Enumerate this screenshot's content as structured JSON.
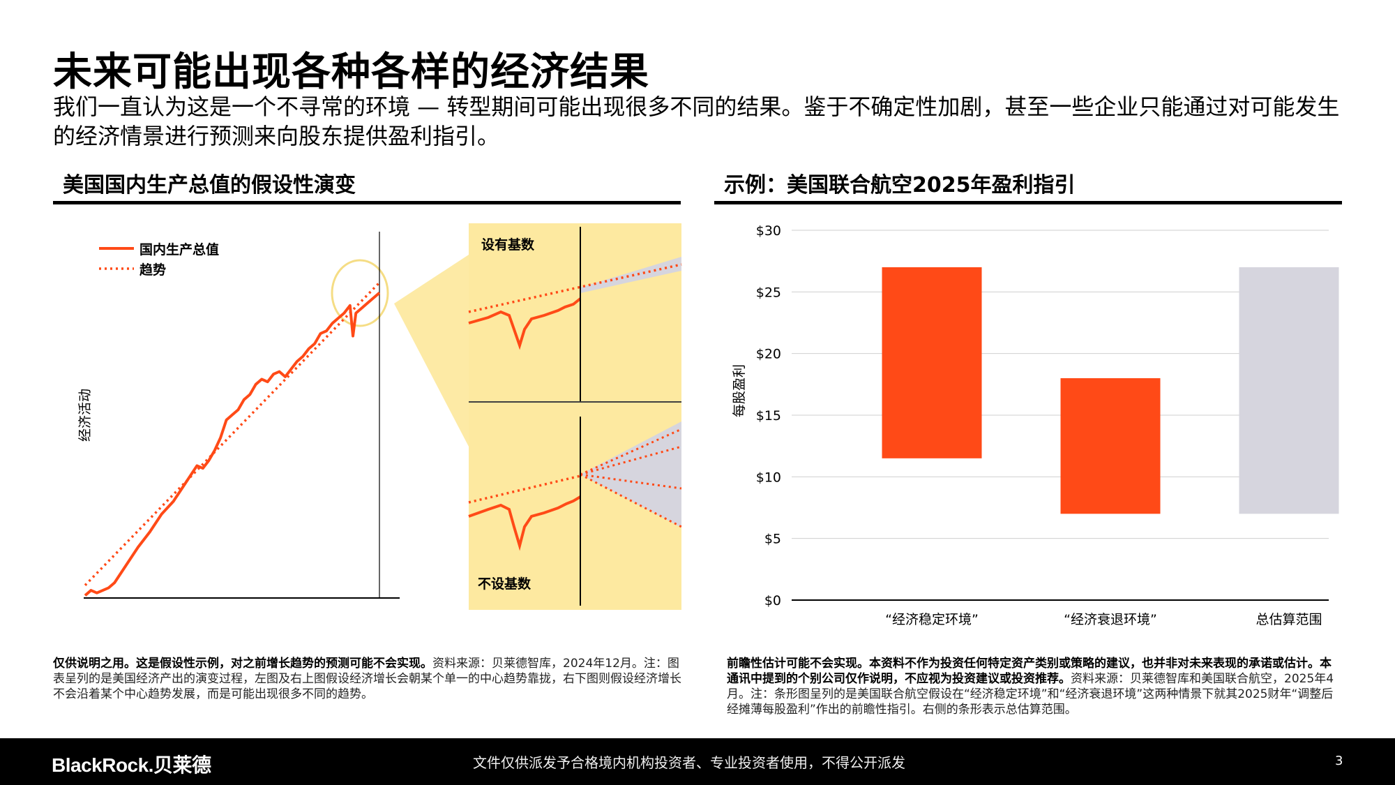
{
  "title": "未来可能出现各种各样的经济结果",
  "subtitle": "我们一直认为这是一个不寻常的环境 — 转型期间可能出现很多不同的结果。鉴于不确定性加剧，甚至一些企业只能通过对可能发生的经济情景进行预测来向股东提供盈利指引。",
  "left_panel": {
    "title": "美国国内生产总值的假设性演变",
    "ylabel": "经济活动",
    "legend": {
      "gdp": "国内生产总值",
      "trend": "趋势"
    },
    "inset_top_label": "设有基数",
    "inset_bottom_label": "不设基数",
    "footnote_bold": "仅供说明之用。这是假设性示例，对之前增长趋势的预测可能不会实现。",
    "footnote": "资料来源：贝莱德智库，2024年12月。注：图表呈列的是美国经济产出的演变过程，左图及右上图假设经济增长会朝某个单一的中心趋势靠拢，右下图则假设经济增长不会沿着某个中心趋势发展，而是可能出现很多不同的趋势。"
  },
  "right_panel": {
    "title": "示例：美国联合航空2025年盈利指引",
    "footnote_bold": "前瞻性估计可能不会实现。本资料不作为投资任何特定资产类别或策略的建议，也并非对未来表现的承诺或估计。本通讯中提到的个别公司仅作说明，不应视为投资建议或投资推荐。",
    "footnote": "资料来源：贝莱德智库和美国联合航空，2025年4月。注：条形图呈列的是美国联合航空假设在“经济稳定环境”和“经济衰退环境”这两种情景下就其2025财年“调整后经摊薄每股盈利”作出的前瞻性指引。右侧的条形表示总估算范围。"
  },
  "chart_data": [
    {
      "type": "line",
      "title": "美国国内生产总值的假设性演变",
      "xlabel": "",
      "ylabel": "经济活动",
      "grid": false,
      "legend_position": "top-left",
      "series": [
        {
          "name": "国内生产总值",
          "style": "solid",
          "x": [
            0,
            2,
            4,
            6,
            8,
            10,
            14,
            18,
            22,
            26,
            30,
            34,
            38,
            40,
            42,
            44,
            46,
            48,
            50,
            52,
            54,
            56,
            58,
            60,
            62,
            64,
            66,
            68,
            70,
            72,
            74,
            76,
            78,
            80,
            82,
            84,
            86,
            88,
            90,
            91,
            92,
            94,
            96,
            98,
            100
          ],
          "y": [
            1,
            3,
            2,
            3,
            4,
            6,
            13,
            20,
            26,
            33,
            38,
            45,
            52,
            51,
            54,
            58,
            63,
            70,
            72,
            74,
            78,
            80,
            84,
            86,
            85,
            88,
            89,
            87,
            90,
            93,
            95,
            98,
            100,
            104,
            105,
            108,
            110,
            112,
            115,
            103,
            112,
            114,
            116,
            118,
            120
          ]
        },
        {
          "name": "趋势",
          "style": "dotted",
          "x": [
            0,
            100
          ],
          "y": [
            5,
            124
          ]
        }
      ]
    },
    {
      "type": "bar",
      "title": "示例：美国联合航空2025年盈利指引",
      "ylabel": "每股盈利",
      "ylim": [
        0,
        30
      ],
      "yticks": [
        "$0",
        "$5",
        "$10",
        "$15",
        "$20",
        "$25",
        "$30"
      ],
      "grid": true,
      "categories": [
        "“经济稳定环境”",
        "“经济衰退环境”",
        "总估算范围"
      ],
      "ranges": [
        {
          "low": 11.5,
          "high": 27,
          "color": "#ff4a17"
        },
        {
          "low": 7,
          "high": 18,
          "color": "#ff4a17"
        },
        {
          "low": 7,
          "high": 27,
          "color": "#d6d5de"
        }
      ]
    }
  ],
  "footer": {
    "brand": "BlackRock.贝莱德",
    "notice": "文件仅供派发予合格境内机构投资者、专业投资者使用，不得公开派发",
    "page": "3"
  },
  "colors": {
    "orange": "#ff4a17",
    "grey": "#d6d5de",
    "yellow": "#fde9a0",
    "cone": "#d6d5de"
  }
}
